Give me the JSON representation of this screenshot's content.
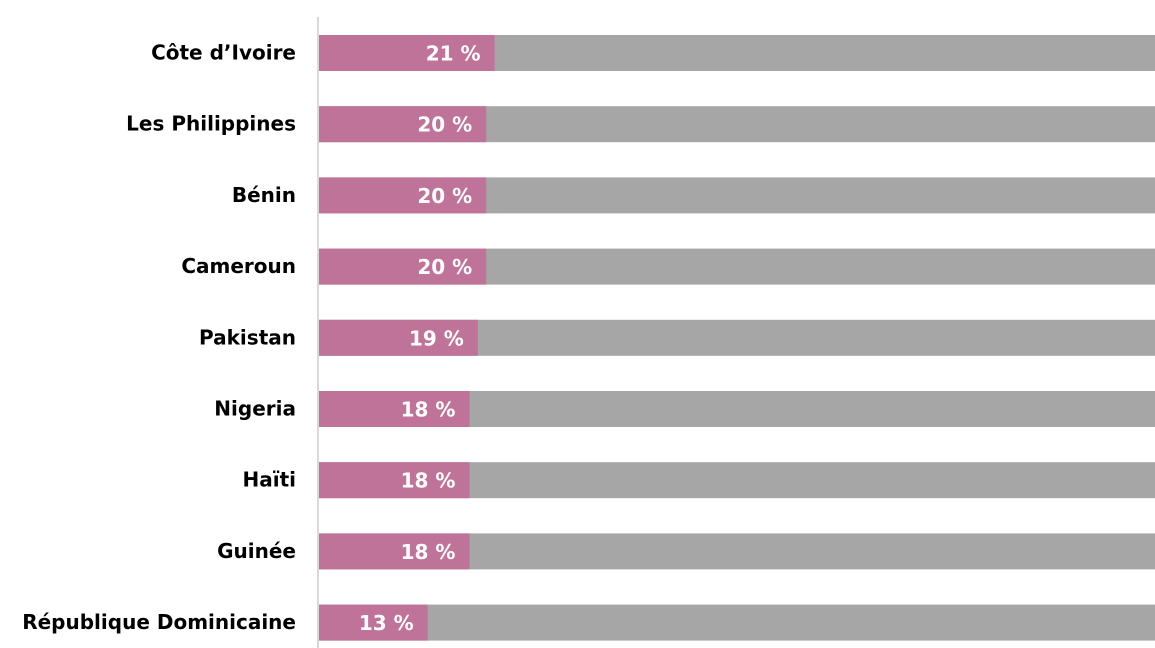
{
  "chart_data": {
    "type": "bar",
    "orientation": "horizontal",
    "categories": [
      "Côte d’Ivoire",
      "Les Philippines",
      "Bénin",
      "Cameroun",
      "Pakistan",
      "Nigeria",
      "Haïti",
      "Guinée",
      "République Dominicaine"
    ],
    "values": [
      21,
      20,
      20,
      20,
      19,
      18,
      18,
      18,
      13
    ],
    "value_labels": [
      "21 %",
      "20 %",
      "20 %",
      "20 %",
      "19 %",
      "18 %",
      "18 %",
      "18 %",
      "13 %"
    ],
    "color": "#bf7399",
    "track_color": "#a6a6a6",
    "xlim": [
      0,
      100
    ]
  }
}
